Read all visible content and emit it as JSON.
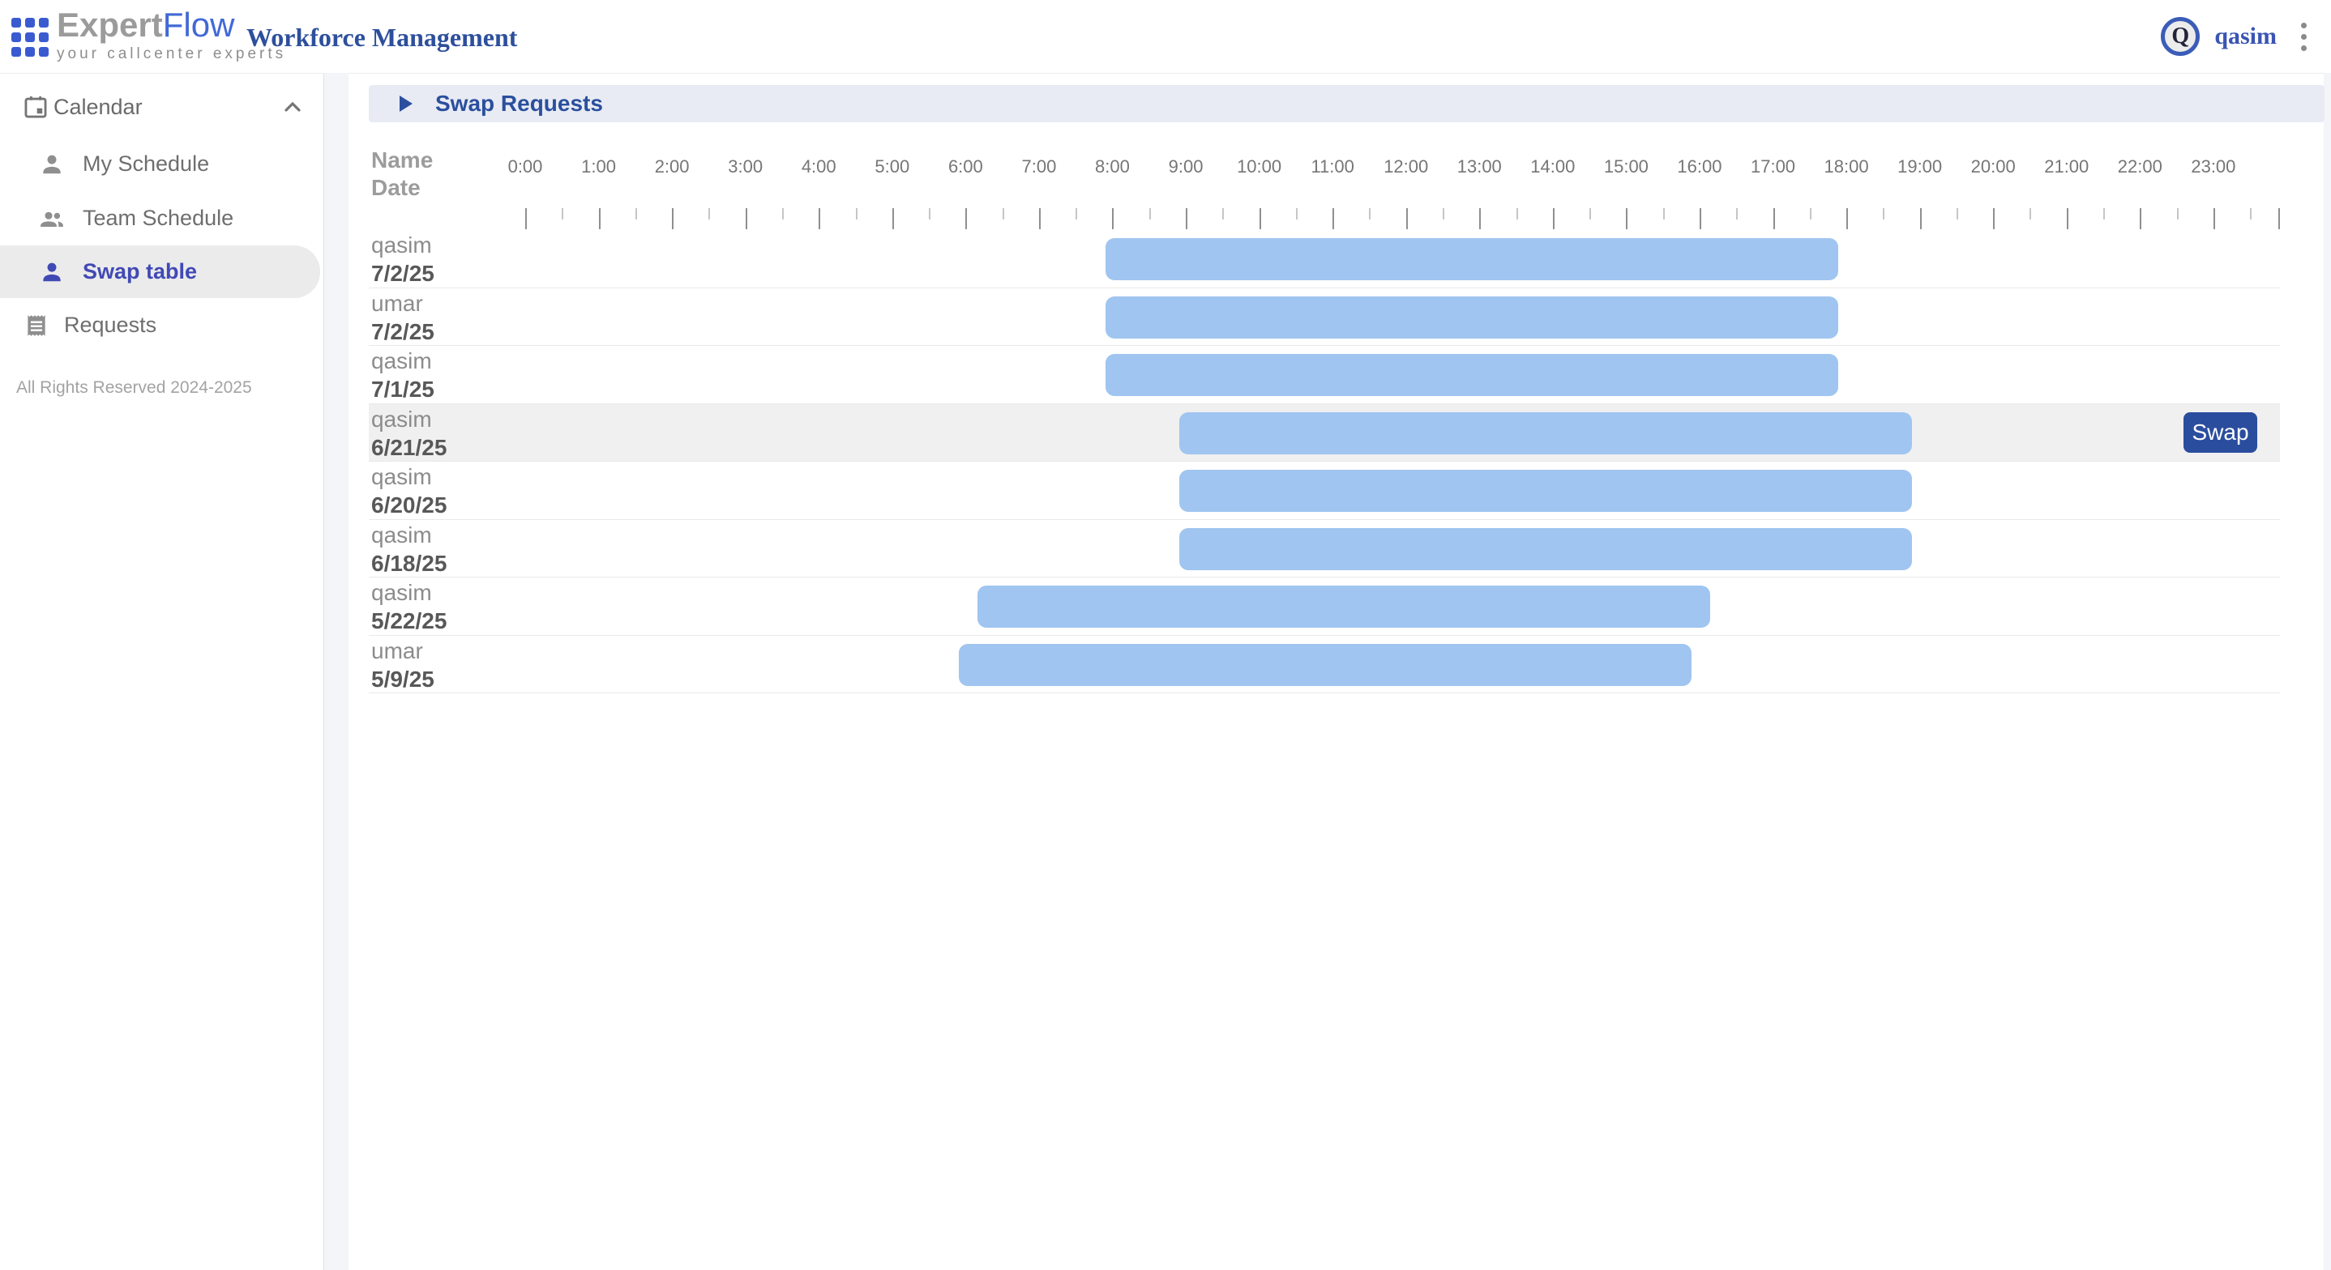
{
  "header": {
    "logo": {
      "brand_gray": "Expert",
      "brand_blue": "Flow",
      "tagline": "your callcenter experts"
    },
    "app_title": "Workforce Management",
    "user": {
      "initial": "Q",
      "name": "qasim"
    }
  },
  "sidebar": {
    "section_label": "Calendar",
    "items": [
      {
        "id": "my-schedule",
        "label": "My Schedule",
        "icon": "person-icon",
        "indent": true,
        "selected": false
      },
      {
        "id": "team-schedule",
        "label": "Team Schedule",
        "icon": "people-icon",
        "indent": true,
        "selected": false
      },
      {
        "id": "swap-table",
        "label": "Swap table",
        "icon": "person-icon",
        "indent": true,
        "selected": true
      },
      {
        "id": "requests",
        "label": "Requests",
        "icon": "receipt-icon",
        "indent": false,
        "selected": false
      }
    ],
    "footer": "All Rights Reserved 2024-2025"
  },
  "main": {
    "panel_title": "Swap Requests",
    "table": {
      "col_header_line1": "Name",
      "col_header_line2": "Date",
      "hours": [
        "0:00",
        "1:00",
        "2:00",
        "3:00",
        "4:00",
        "5:00",
        "6:00",
        "7:00",
        "8:00",
        "9:00",
        "10:00",
        "11:00",
        "12:00",
        "13:00",
        "14:00",
        "15:00",
        "16:00",
        "17:00",
        "18:00",
        "19:00",
        "20:00",
        "21:00",
        "22:00",
        "23:00"
      ],
      "rows": [
        {
          "name": "qasim",
          "date": "7/2/25",
          "start": 8,
          "end": 18,
          "selected": false
        },
        {
          "name": "umar",
          "date": "7/2/25",
          "start": 8,
          "end": 18,
          "selected": false
        },
        {
          "name": "qasim",
          "date": "7/1/25",
          "start": 8,
          "end": 18,
          "selected": false
        },
        {
          "name": "qasim",
          "date": "6/21/25",
          "start": 9,
          "end": 19,
          "selected": true,
          "action_label": "Swap"
        },
        {
          "name": "qasim",
          "date": "6/20/25",
          "start": 9,
          "end": 19,
          "selected": false
        },
        {
          "name": "qasim",
          "date": "6/18/25",
          "start": 9,
          "end": 19,
          "selected": false
        },
        {
          "name": "qasim",
          "date": "5/22/25",
          "start": 6.25,
          "end": 16.25,
          "selected": false
        },
        {
          "name": "umar",
          "date": "5/9/25",
          "start": 6,
          "end": 16,
          "selected": false
        }
      ]
    }
  },
  "colors": {
    "accent_blue": "#2a4d9e",
    "selected_indigo": "#4149b5",
    "bar_blue": "#a0c5f0",
    "band_bg": "#e8ebf4",
    "row_highlight": "#f0f0f0"
  }
}
